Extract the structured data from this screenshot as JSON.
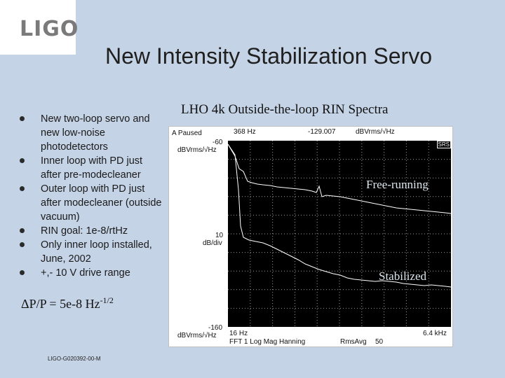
{
  "logo": {
    "text": "LIGO"
  },
  "slide": {
    "title": "New Intensity Stabilization Servo"
  },
  "bullets": [
    "New two-loop servo and  new low-noise photodetectors",
    "Inner loop with PD just after pre-modecleaner",
    "Outer loop with PD just after modecleaner (outside vacuum)",
    "RIN goal: 1e-8/rtHz",
    "Only inner loop installed, June, 2002",
    "+,- 10 V drive range"
  ],
  "formula": {
    "main": "ΔP/P = 5e-8 Hz",
    "exponent": "-1/2"
  },
  "doc_id": "LIGO-G020392-00-M",
  "plot": {
    "title": "LHO 4k Outside-the-loop RIN Spectra",
    "status": "A Paused",
    "marker_freq": "368 Hz",
    "marker_value": "-129.007",
    "marker_unit": "dBVrms/√Hz",
    "top_level": "-60",
    "top_unit": "dBVrms/√Hz",
    "scale": "10",
    "scale_unit": "dB/div",
    "bottom_level": "-160",
    "bottom_unit": "dBVrms/√Hz",
    "start_freq": "16 Hz",
    "stop_freq": "6.4 kHz",
    "mode": "FFT 1 Log Mag Hanning",
    "avg_label": "RmsAvg",
    "avg_count": "50",
    "badge": "SRS",
    "trace_free_label": "Free-running",
    "trace_stab_label": "Stabilized"
  },
  "colors": {
    "background": "#c5d3e6",
    "screen": "#000000",
    "trace": "#ffffff",
    "grid": "#bfbfbf"
  }
}
